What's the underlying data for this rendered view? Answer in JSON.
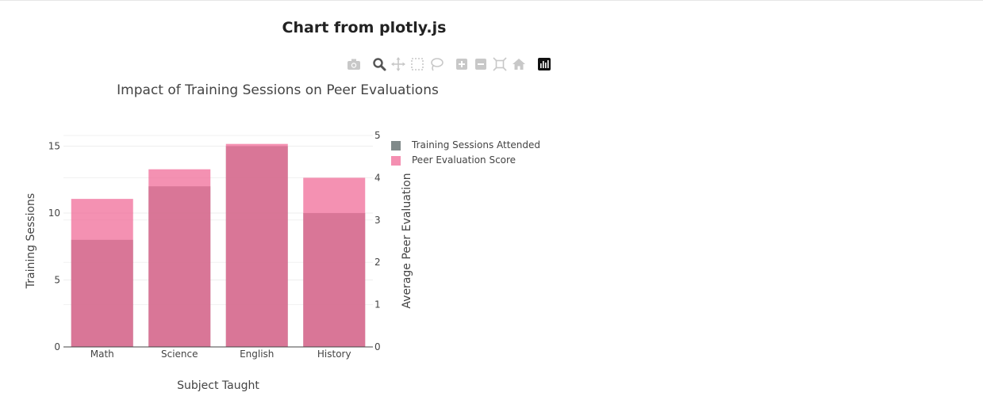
{
  "page": {
    "title": "Chart from plotly.js"
  },
  "modebar": {
    "buttons": [
      "camera-icon",
      "zoom-icon",
      "pan-icon",
      "box-select-icon",
      "lasso-icon",
      "zoom-in-icon",
      "zoom-out-icon",
      "autoscale-icon",
      "reset-axes-icon",
      "plotly-logo-icon"
    ]
  },
  "chart_data": {
    "type": "bar",
    "title": "Impact of Training Sessions on Peer Evaluations",
    "xlabel": "Subject Taught",
    "ylabel": "Training Sessions",
    "y2label": "Average Peer Evaluation",
    "categories": [
      "Math",
      "Science",
      "English",
      "History"
    ],
    "ylim": [
      0,
      15.8
    ],
    "y2lim": [
      0,
      5
    ],
    "yticks": [
      0,
      5,
      10,
      15
    ],
    "y2ticks": [
      0,
      1,
      2,
      3,
      4,
      5
    ],
    "grid": true,
    "legend_position": "top-right",
    "series": [
      {
        "name": "Training Sessions Attended",
        "axis": "y",
        "values": [
          8,
          12,
          15,
          10
        ],
        "color": "#808080",
        "legend_color": "#808a8a"
      },
      {
        "name": "Peer Evaluation Score",
        "axis": "y2",
        "values": [
          3.5,
          4.2,
          4.8,
          4.0
        ],
        "color": "#f06292",
        "legend_color": "#f48fb1"
      }
    ]
  }
}
